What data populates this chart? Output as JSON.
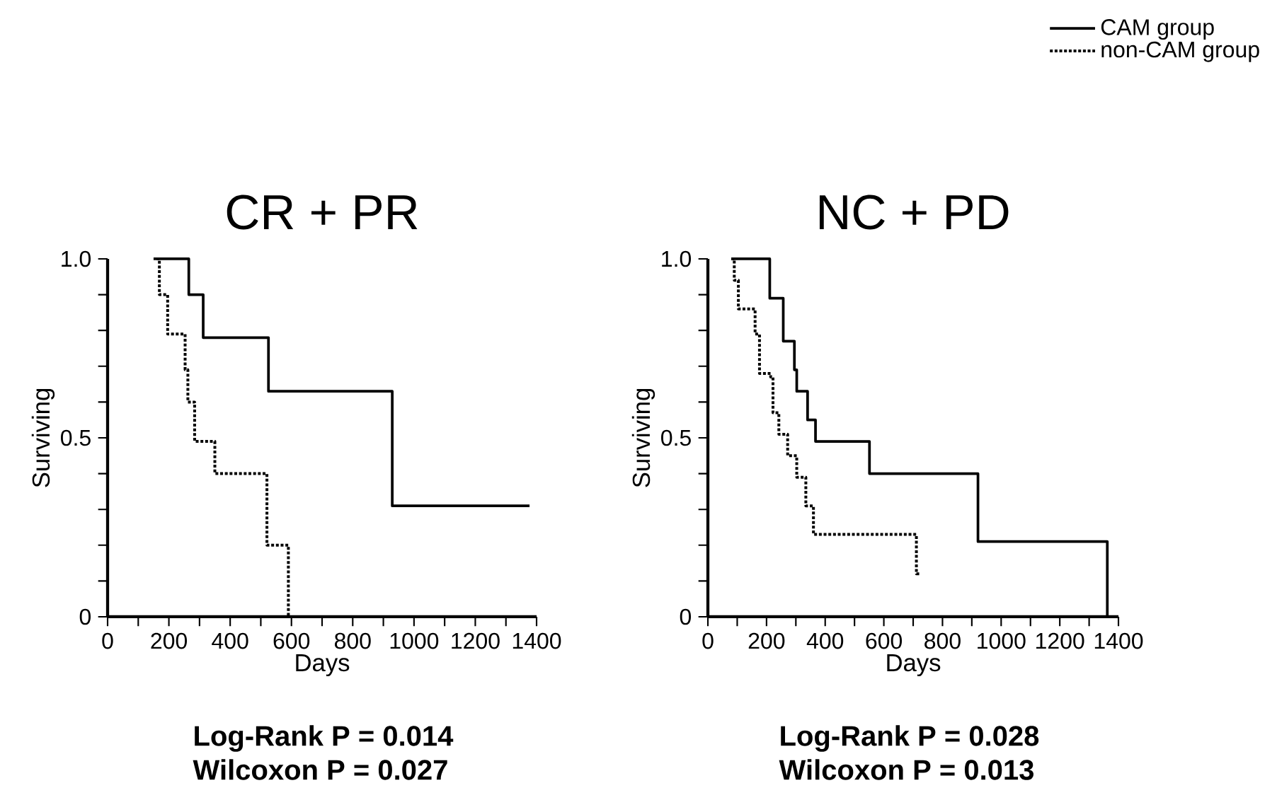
{
  "chart_data": [
    {
      "type": "step",
      "title": "CR + PR",
      "xlabel": "Days",
      "ylabel": "Surviving",
      "xlim": [
        0,
        1400
      ],
      "ylim": [
        0,
        1
      ],
      "xticks": [
        0,
        200,
        400,
        600,
        800,
        1000,
        1200,
        1400
      ],
      "yticks": [
        0,
        {
          "value": 0.1,
          "label": null
        },
        {
          "value": 0.2,
          "label": null
        },
        {
          "value": 0.3,
          "label": null
        },
        {
          "value": 0.4,
          "label": null
        },
        0.5,
        {
          "value": 0.6,
          "label": null
        },
        {
          "value": 0.7,
          "label": null
        },
        {
          "value": 0.8,
          "label": null
        },
        {
          "value": 0.9,
          "label": null
        },
        {
          "value": 1,
          "label": "1.0"
        }
      ],
      "series": [
        {
          "color": "#000000",
          "line_style": "solid",
          "x": [
            150,
            265,
            312,
            525,
            929,
            1377
          ],
          "values": [
            1.0,
            0.9,
            0.78,
            0.63,
            0.31,
            0.31
          ]
        },
        {
          "color": "#000000",
          "line_style": "dotted",
          "x": [
            160,
            169,
            196,
            253,
            262,
            284,
            350,
            520,
            590
          ],
          "values": [
            1.0,
            0.9,
            0.79,
            0.69,
            0.6,
            0.49,
            0.4,
            0.2,
            0.0
          ]
        }
      ],
      "annotations": [
        "Log-Rank P = 0.014",
        "Wilcoxon P = 0.027"
      ]
    },
    {
      "type": "step",
      "title": "NC + PD",
      "xlabel": "Days",
      "ylabel": "Surviving",
      "xlim": [
        0,
        1400
      ],
      "ylim": [
        0,
        1
      ],
      "xticks": [
        0,
        200,
        400,
        600,
        800,
        1000,
        1200,
        1400
      ],
      "yticks": [
        0,
        {
          "value": 0.1,
          "label": null
        },
        {
          "value": 0.2,
          "label": null
        },
        {
          "value": 0.3,
          "label": null
        },
        {
          "value": 0.4,
          "label": null
        },
        0.5,
        {
          "value": 0.6,
          "label": null
        },
        {
          "value": 0.7,
          "label": null
        },
        {
          "value": 0.8,
          "label": null
        },
        {
          "value": 0.9,
          "label": null
        },
        {
          "value": 1,
          "label": "1.0"
        }
      ],
      "legend": "top right",
      "series": [
        {
          "name": "CAM group",
          "color": "#000000",
          "line_style": "solid",
          "x": [
            80,
            211,
            257,
            295,
            303,
            340,
            367,
            551,
            921,
            1362
          ],
          "values": [
            1.0,
            0.89,
            0.77,
            0.69,
            0.63,
            0.55,
            0.49,
            0.4,
            0.21,
            0.0
          ]
        },
        {
          "name": "non-CAM group",
          "color": "#000000",
          "line_style": "dotted",
          "x": [
            80,
            90,
            104,
            161,
            176,
            214,
            222,
            242,
            272,
            303,
            334,
            360,
            711,
            727
          ],
          "values": [
            1.0,
            0.94,
            0.86,
            0.79,
            0.68,
            0.67,
            0.57,
            0.51,
            0.45,
            0.39,
            0.31,
            0.23,
            0.12,
            0.12
          ]
        }
      ],
      "annotations": [
        "Log-Rank P = 0.028",
        "Wilcoxon P = 0.013"
      ]
    }
  ]
}
